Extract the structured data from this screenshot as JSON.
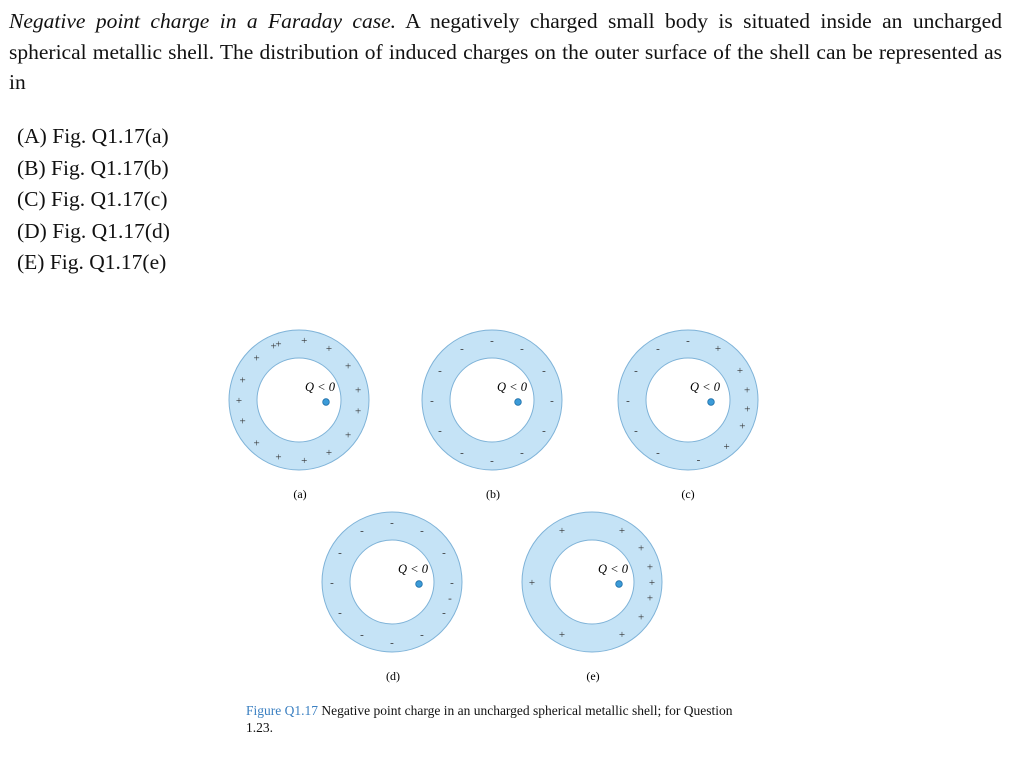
{
  "question": {
    "lead": "Negative point charge in a Faraday case.",
    "text": "A negatively charged small body is situated inside an uncharged spherical metallic shell. The distribution of induced charges on the outer surface of the shell can be represented as in"
  },
  "options": [
    {
      "label": "(A)",
      "text": "Fig. Q1.17(a)"
    },
    {
      "label": "(B)",
      "text": "Fig. Q1.17(b)"
    },
    {
      "label": "(C)",
      "text": "Fig. Q1.17(c)"
    },
    {
      "label": "(D)",
      "text": "Fig. Q1.17(d)"
    },
    {
      "label": "(E)",
      "text": "Fig. Q1.17(e)"
    }
  ],
  "figure": {
    "charge_label": "Q < 0",
    "panels": [
      {
        "label": "(a)",
        "outer_signs": "+",
        "distribution": "uniform"
      },
      {
        "label": "(b)",
        "outer_signs": "-",
        "distribution": "uniform"
      },
      {
        "label": "(c)",
        "outer_signs": "mixed",
        "distribution": "positive near charge, negative far side"
      },
      {
        "label": "(d)",
        "outer_signs": "-",
        "distribution": "uniform"
      },
      {
        "label": "(e)",
        "outer_signs": "+",
        "distribution": "concentrated near charge"
      }
    ],
    "caption_label": "Figure Q1.17",
    "caption_text": "Negative point charge in an uncharged spherical metallic shell; for Question 1.23."
  },
  "colors": {
    "shell_fill": "#c5e3f6",
    "shell_stroke": "#7fb3d8",
    "charge_fill": "#3b9bd8",
    "caption_accent": "#3a7fc1"
  }
}
